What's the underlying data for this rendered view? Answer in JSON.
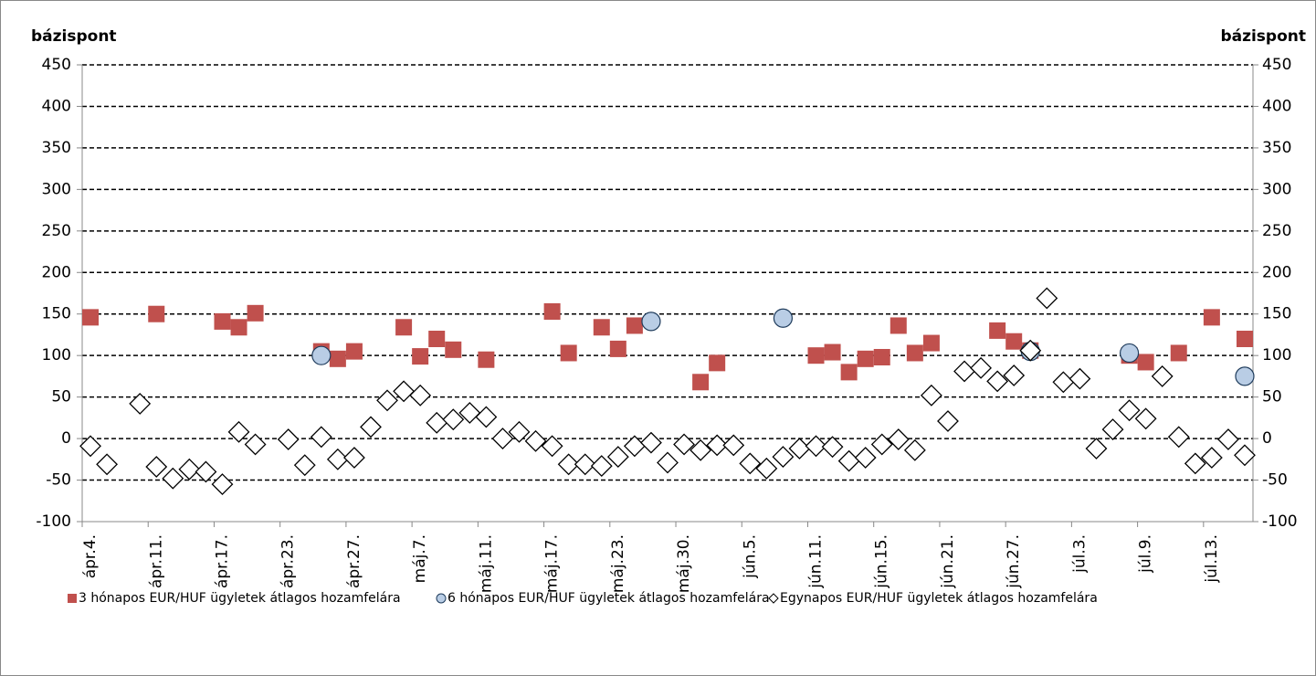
{
  "chart_data": {
    "type": "scatter",
    "y_label": "bázispont",
    "y2_label": "bázispont",
    "categories": [
      "ápr.4.",
      null,
      null,
      null,
      "ápr.11.",
      null,
      null,
      null,
      "ápr.17.",
      null,
      null,
      null,
      "ápr.23.",
      null,
      null,
      null,
      "ápr.27.",
      null,
      null,
      null,
      "máj.7.",
      null,
      null,
      null,
      "máj.11.",
      null,
      null,
      null,
      "máj.17.",
      null,
      null,
      null,
      "máj.23.",
      null,
      null,
      null,
      "máj.30.",
      null,
      null,
      null,
      "jún.5.",
      null,
      null,
      null,
      "jún.11.",
      null,
      null,
      null,
      "jún.15.",
      null,
      null,
      null,
      "jún.21.",
      null,
      null,
      null,
      "jún.27.",
      null,
      null,
      null,
      "júl.3.",
      null,
      null,
      null,
      "júl.9.",
      null,
      null,
      null,
      "júl.13.",
      null,
      null
    ],
    "series": [
      {
        "name": "3 hónapos EUR/HUF ügyletek átlagos hozamfelára",
        "color": "#c0504d",
        "marker": "square",
        "values": [
          146,
          null,
          null,
          null,
          150,
          null,
          null,
          null,
          141,
          134,
          151,
          null,
          null,
          null,
          105,
          96,
          105,
          null,
          null,
          134,
          99,
          120,
          107,
          null,
          95,
          null,
          null,
          null,
          153,
          103,
          null,
          134,
          108,
          136,
          null,
          null,
          null,
          68,
          91,
          null,
          null,
          null,
          null,
          null,
          100,
          104,
          80,
          96,
          98,
          136,
          103,
          115,
          null,
          null,
          null,
          130,
          117,
          106,
          null,
          null,
          null,
          null,
          null,
          100,
          92,
          null,
          103,
          null,
          146,
          null,
          120
        ]
      },
      {
        "name": "6 hónapos EUR/HUF ügyletek átlagos hozamfelára",
        "color": "#b9cde5",
        "marker": "circle",
        "values": [
          null,
          null,
          null,
          null,
          null,
          null,
          null,
          null,
          null,
          null,
          null,
          null,
          null,
          null,
          100,
          null,
          null,
          null,
          null,
          null,
          null,
          null,
          null,
          null,
          null,
          null,
          null,
          null,
          null,
          null,
          null,
          null,
          null,
          null,
          141,
          null,
          null,
          null,
          null,
          null,
          null,
          null,
          145,
          null,
          null,
          null,
          null,
          null,
          null,
          null,
          null,
          null,
          null,
          null,
          null,
          null,
          null,
          105,
          null,
          null,
          null,
          null,
          null,
          103,
          null,
          null,
          null,
          null,
          null,
          null,
          75
        ]
      },
      {
        "name": "Egynapos EUR/HUF ügyletek átlagos hozamfelára",
        "color": "#ffffff",
        "marker": "diamond",
        "values": [
          -9,
          -31,
          null,
          42,
          -34,
          -48,
          -37,
          -40,
          -55,
          8,
          -7,
          null,
          -1,
          -32,
          2,
          -25,
          -23,
          14,
          46,
          57,
          52,
          19,
          23,
          31,
          26,
          0,
          8,
          -3,
          -9,
          -31,
          -31,
          -33,
          -22,
          -9,
          -5,
          -29,
          -7,
          -14,
          -8,
          -8,
          -30,
          -36,
          -22,
          -12,
          -9,
          -10,
          -27,
          -23,
          -7,
          -1,
          -14,
          52,
          21,
          81,
          85,
          69,
          76,
          106,
          169,
          68,
          72,
          -12,
          11,
          34,
          24,
          75,
          2,
          -30,
          -23,
          -1,
          -20
        ]
      }
    ],
    "ylim": [
      -100,
      450
    ],
    "yticks": [
      -100,
      -50,
      0,
      50,
      100,
      150,
      200,
      250,
      300,
      350,
      400,
      450
    ],
    "y2lim": [
      -100,
      450
    ],
    "y2ticks": [
      -100,
      -50,
      0,
      50,
      100,
      150,
      200,
      250,
      300,
      350,
      400,
      450
    ],
    "grid": true,
    "legend": "bottom"
  }
}
